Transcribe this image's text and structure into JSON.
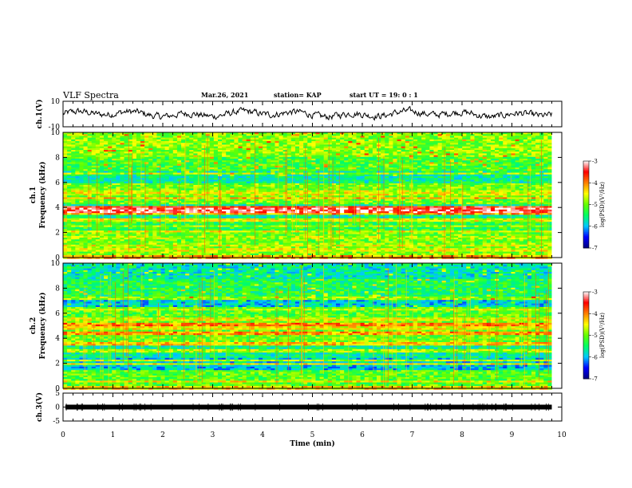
{
  "header": {
    "title": "VLF Spectra",
    "date": "Mar.26, 2021",
    "station": "station= KAP",
    "start": "start  UT  =   19: 0  : 1"
  },
  "chart_data": [
    {
      "type": "line",
      "panel": "ch1-waveform",
      "ylabel": "ch.1(V)",
      "ylim": [
        -10,
        10
      ],
      "yticks": [
        "10",
        "-10"
      ],
      "xlim": [
        0,
        10
      ],
      "x_range": [
        0,
        9.8
      ],
      "series": [
        {
          "description_values": "noisy waveform",
          "mean": 0,
          "amplitude": 3.5
        }
      ]
    },
    {
      "type": "heatmap",
      "panel": "ch1-spectrogram",
      "ylabel_line1": "ch.1",
      "ylabel_line2": "Frequency (kHz)",
      "ylim": [
        0,
        10
      ],
      "yticks": [
        "0",
        "2",
        "4",
        "6",
        "8",
        "10"
      ],
      "xlim": [
        0,
        10
      ],
      "x_range": [
        0,
        9.8
      ],
      "colorbar": {
        "label": "log(PSD)(V²/Hz)",
        "ticks": [
          "-3",
          "-4",
          "-5",
          "-6",
          "-7"
        ],
        "range": [
          -7,
          -3
        ]
      },
      "bands_khz": [
        {
          "f": 0.05,
          "level": -4.2
        },
        {
          "f": 0.6,
          "level": -4.6
        },
        {
          "f": 1.0,
          "level": -4.6
        },
        {
          "f": 1.6,
          "level": -4.8
        },
        {
          "f": 2.1,
          "level": -4.6
        },
        {
          "f": 2.5,
          "level": -4.8
        },
        {
          "f": 3.0,
          "level": -4.6
        },
        {
          "f": 3.45,
          "level": -4.1
        },
        {
          "f": 3.7,
          "level": -3.3
        },
        {
          "f": 3.85,
          "level": -3.3
        },
        {
          "f": 4.05,
          "level": -3.6
        },
        {
          "f": 4.7,
          "level": -4.3
        },
        {
          "f": 5.1,
          "level": -4.6
        },
        {
          "f": 5.3,
          "level": -4.7
        },
        {
          "f": 6.7,
          "level": -4.8
        }
      ]
    },
    {
      "type": "heatmap",
      "panel": "ch2-spectrogram",
      "ylabel_line1": "ch.2",
      "ylabel_line2": "Frequency (kHz)",
      "ylim": [
        0,
        10
      ],
      "yticks": [
        "0",
        "2",
        "4",
        "6",
        "8",
        "10"
      ],
      "xlim": [
        0,
        10
      ],
      "x_range": [
        0,
        9.8
      ],
      "colorbar": {
        "label": "log(PSD)(V²/Hz)",
        "ticks": [
          "-3",
          "-4",
          "-5",
          "-6",
          "-7"
        ],
        "range": [
          -7,
          -3
        ]
      },
      "bands_khz": [
        {
          "f": 0.05,
          "level": -4.4
        },
        {
          "f": 0.5,
          "level": -4.5
        },
        {
          "f": 1.9,
          "level": -4.5
        },
        {
          "f": 2.2,
          "level": -4.7
        },
        {
          "f": 3.0,
          "level": -4.8
        },
        {
          "f": 3.55,
          "level": -4.3
        },
        {
          "f": 4.4,
          "level": -4.1
        },
        {
          "f": 4.8,
          "level": -4.5
        },
        {
          "f": 5.1,
          "level": -4.0
        },
        {
          "f": 5.5,
          "level": -4.6
        },
        {
          "f": 6.3,
          "level": -4.7
        },
        {
          "f": 7.2,
          "level": -4.9
        }
      ]
    },
    {
      "type": "line",
      "panel": "ch3-waveform",
      "ylabel": "ch.3(V)",
      "ylim": [
        -5,
        5
      ],
      "yticks": [
        "5",
        "0",
        "-5"
      ],
      "xlim": [
        0,
        10
      ],
      "x_range": [
        0,
        9.8
      ],
      "series": [
        {
          "description_values": "constant thick trace",
          "mean": 0,
          "amplitude": 0.3
        }
      ]
    }
  ],
  "xaxis": {
    "label": "Time  (min)",
    "ticks": [
      "0",
      "1",
      "2",
      "3",
      "4",
      "5",
      "6",
      "7",
      "8",
      "9",
      "10"
    ]
  },
  "colors": {
    "line": "#000000",
    "colormap": [
      "#00007f",
      "#0000ff",
      "#00c8ff",
      "#00ff64",
      "#64ff00",
      "#ffff00",
      "#ff8000",
      "#ff0000",
      "#ffffff"
    ]
  }
}
